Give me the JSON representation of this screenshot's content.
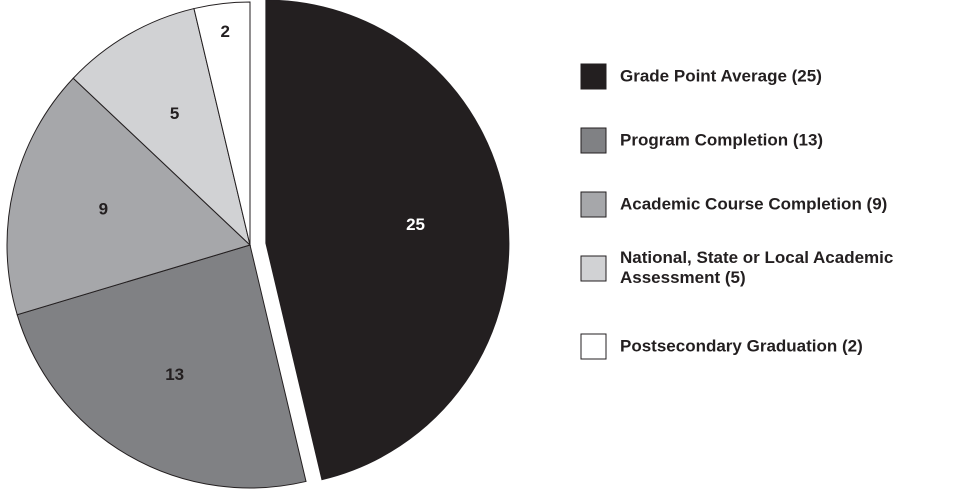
{
  "chart_data": {
    "type": "pie",
    "categories": [
      "Grade Point Average (25)",
      "Program Completion (13)",
      "Academic Course Completion (9)",
      "National, State or Local Academic Assessment (5)",
      "Postsecondary Graduation (2)"
    ],
    "values": [
      25,
      13,
      9,
      5,
      2
    ],
    "colors": [
      "#231f20",
      "#808184",
      "#a6a7aa",
      "#d1d2d4",
      "#ffffff"
    ],
    "exploded": [
      0
    ],
    "legend": "right"
  }
}
